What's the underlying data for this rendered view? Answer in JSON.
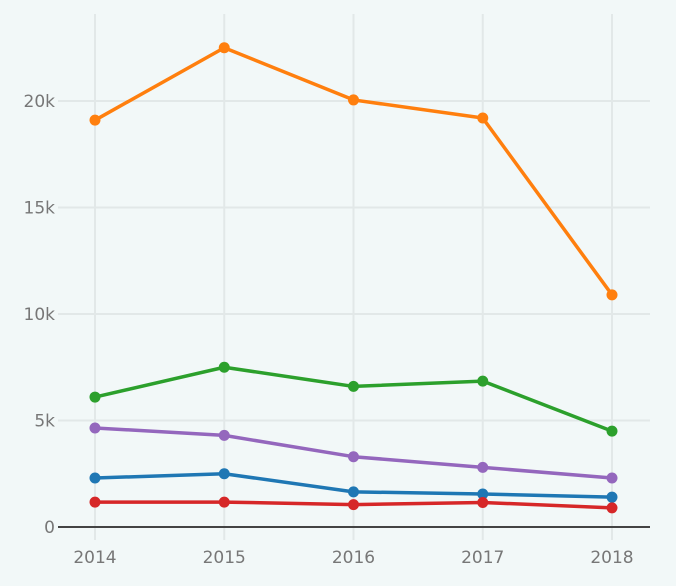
{
  "chart_data": {
    "type": "line",
    "x": [
      2014,
      2015,
      2016,
      2017,
      2018
    ],
    "x_tick_labels": [
      "2014",
      "2015",
      "2016",
      "2017",
      "2018"
    ],
    "y_ticks": [
      0,
      5000,
      10000,
      15000,
      20000
    ],
    "y_tick_labels": [
      "0",
      "5k",
      "10k",
      "15k",
      "20k"
    ],
    "ylim": [
      -800,
      24000
    ],
    "grid": true,
    "series": [
      {
        "color": "#ff7f0e",
        "values": [
          19100,
          22500,
          20050,
          19200,
          10900
        ]
      },
      {
        "color": "#2ca02c",
        "values": [
          6100,
          7500,
          6600,
          6850,
          4500
        ]
      },
      {
        "color": "#9467bd",
        "values": [
          4650,
          4300,
          3300,
          2800,
          2300
        ]
      },
      {
        "color": "#1f77b4",
        "values": [
          2300,
          2500,
          1650,
          1550,
          1400
        ]
      },
      {
        "color": "#d62728",
        "values": [
          1170,
          1170,
          1050,
          1150,
          900
        ]
      }
    ]
  }
}
